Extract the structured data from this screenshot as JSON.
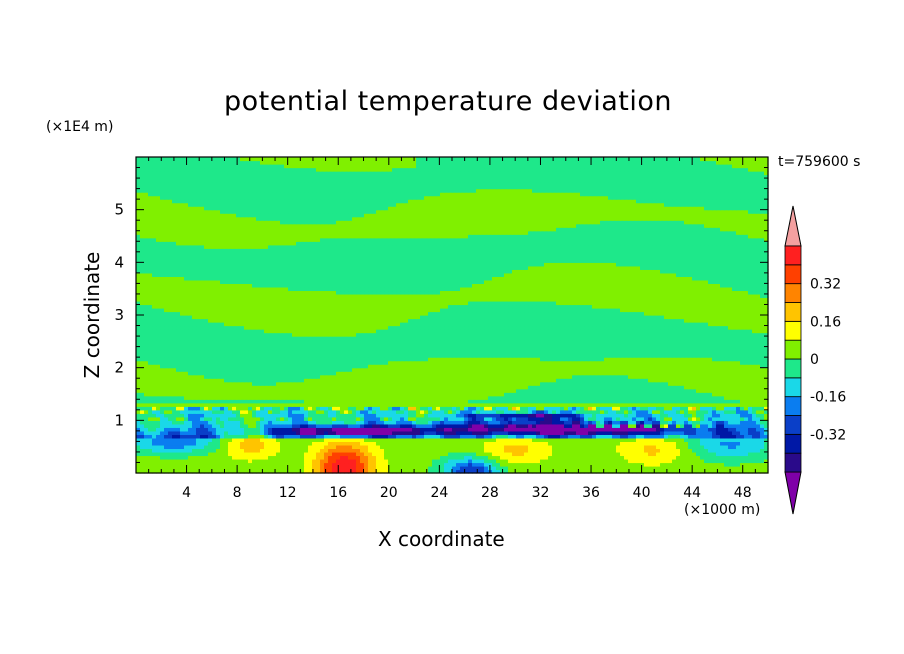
{
  "chart_data": {
    "type": "heatmap",
    "title": "potential temperature deviation",
    "xlabel": "X coordinate",
    "ylabel": "Z coordinate",
    "x_unit_label": "(×1000 m)",
    "z_unit_label": "(×1E4 m)",
    "time_label": "t=759600 s",
    "xlim": [
      0,
      50
    ],
    "ylim": [
      0,
      6
    ],
    "x_ticks": [
      4,
      8,
      12,
      16,
      20,
      24,
      28,
      32,
      36,
      40,
      44,
      48
    ],
    "y_ticks": [
      1,
      2,
      3,
      4,
      5
    ],
    "colorbar": {
      "levels": [
        -0.48,
        -0.4,
        -0.32,
        -0.24,
        -0.16,
        -0.08,
        0,
        0.08,
        0.16,
        0.24,
        0.32,
        0.4,
        0.48
      ],
      "colors": [
        "#7f00a8",
        "#2a0a8a",
        "#0018a6",
        "#0a3fc8",
        "#0a7df0",
        "#1ad8e8",
        "#1ee88a",
        "#80f000",
        "#ffff00",
        "#ffc400",
        "#ff8400",
        "#ff4000",
        "#ff2020",
        "#f4a0a0"
      ],
      "tick_labels": [
        "-0.32",
        "-0.16",
        "0",
        "0.16",
        "0.32"
      ],
      "tick_values": [
        -0.32,
        -0.16,
        0,
        0.16,
        0.32
      ]
    },
    "field_description_bands": [
      {
        "z_range": [
          5.5,
          6.0
        ],
        "value": -0.02
      },
      {
        "z_range": [
          1.3,
          5.5
        ],
        "value": 0.02
      },
      {
        "z_range": [
          0.7,
          1.3
        ],
        "value": -0.2
      },
      {
        "z_range": [
          0.0,
          0.7
        ],
        "value": 0.05
      }
    ],
    "features": [
      {
        "kind": "warm-blob",
        "x": 16.5,
        "z": 0.15,
        "value": 0.3
      },
      {
        "kind": "cold-band",
        "x_range": [
          10,
          24
        ],
        "z": 0.8,
        "value": -0.35
      },
      {
        "kind": "cold-band",
        "x_range": [
          27,
          46
        ],
        "z": 0.85,
        "value": -0.35
      },
      {
        "kind": "cold-blob",
        "x": 27,
        "z": 0.05,
        "value": -0.25
      }
    ]
  }
}
